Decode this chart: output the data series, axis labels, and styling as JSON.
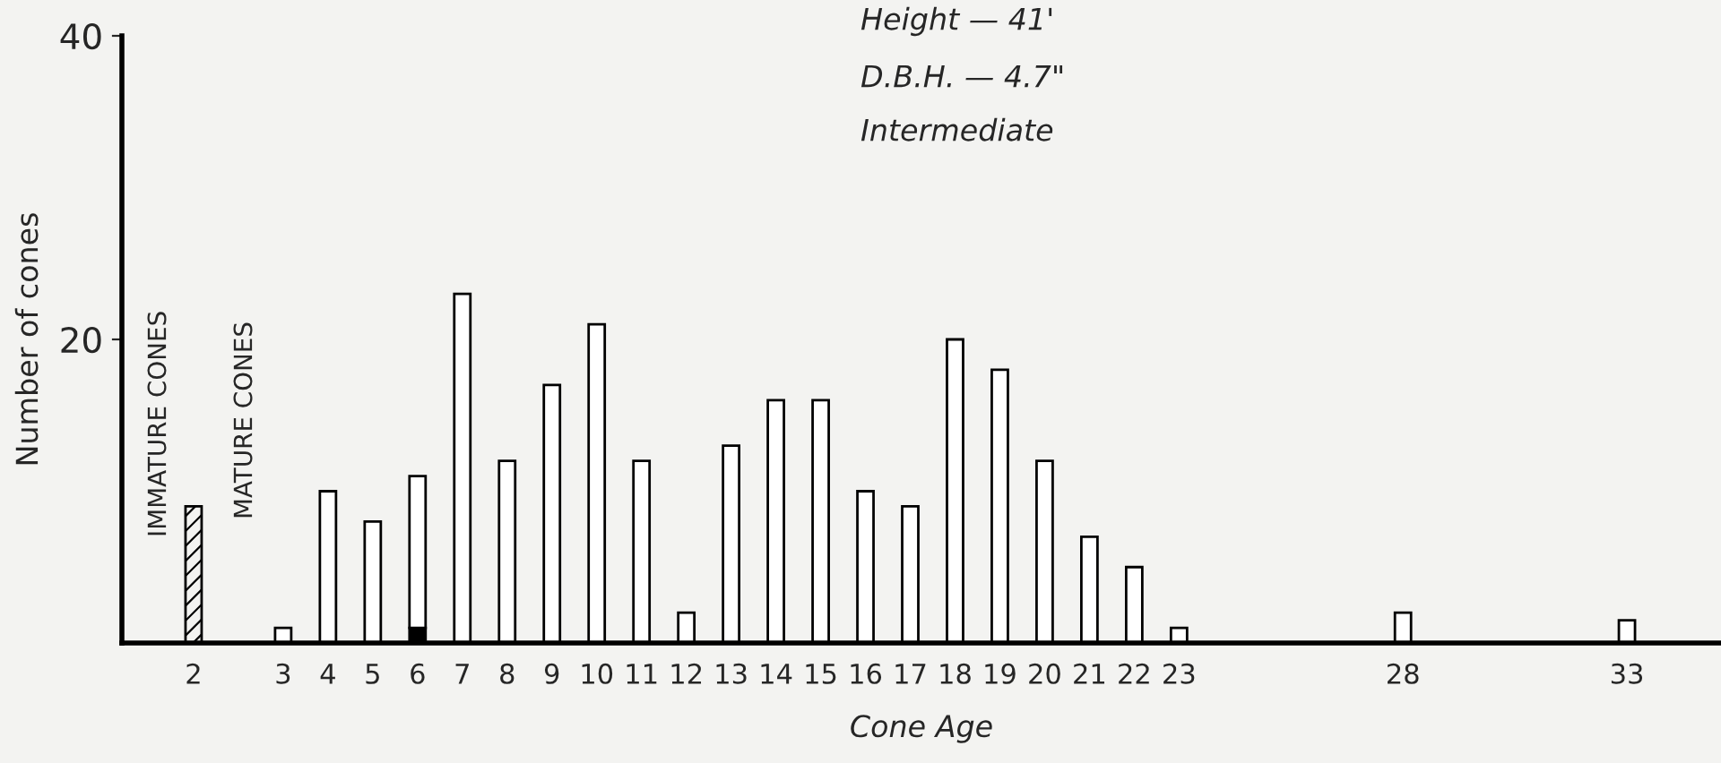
{
  "chart_data": {
    "type": "bar",
    "stacked": true,
    "xlabel": "Cone Age",
    "ylabel": "Number of cones",
    "categories": [
      "2",
      null,
      "3",
      "4",
      "5",
      "6",
      "7",
      "8",
      "9",
      "10",
      "11",
      "12",
      "13",
      "14",
      "15",
      "16",
      "17",
      "18",
      "19",
      "20",
      "21",
      "22",
      "23",
      null,
      null,
      null,
      null,
      "28",
      null,
      null,
      null,
      null,
      "33"
    ],
    "series": [
      {
        "color": "#000000",
        "values": [
          9,
          null,
          null,
          null,
          null,
          null,
          null,
          null,
          null,
          null,
          null,
          null,
          null,
          null,
          null,
          null,
          null,
          null,
          null,
          null,
          null,
          null,
          null,
          null,
          null,
          null,
          null,
          null,
          null,
          null,
          null,
          null,
          null
        ]
      },
      {
        "color": "#000000",
        "values": [
          null,
          null,
          null,
          null,
          null,
          1,
          null,
          null,
          null,
          null,
          null,
          null,
          null,
          null,
          null,
          null,
          null,
          null,
          null,
          null,
          null,
          null,
          null,
          null,
          null,
          null,
          null,
          null,
          null,
          null,
          null,
          null,
          null
        ]
      },
      {
        "color": "#ffffff",
        "values": [
          null,
          null,
          1,
          10,
          8,
          10,
          23,
          12,
          17,
          21,
          12,
          2,
          13,
          16,
          16,
          10,
          9,
          20,
          18,
          12,
          7,
          5,
          1,
          null,
          null,
          null,
          null,
          2,
          null,
          null,
          null,
          null,
          1.5
        ]
      }
    ],
    "ylim": [
      0,
      40
    ],
    "yticks": [
      20,
      40
    ],
    "grid": false,
    "legend": false,
    "annotations": [
      "Height — 41'",
      "D.B.H. — 4.7\"",
      "Intermediate",
      "IMMATURE CONES",
      "MATURE CONES"
    ]
  }
}
